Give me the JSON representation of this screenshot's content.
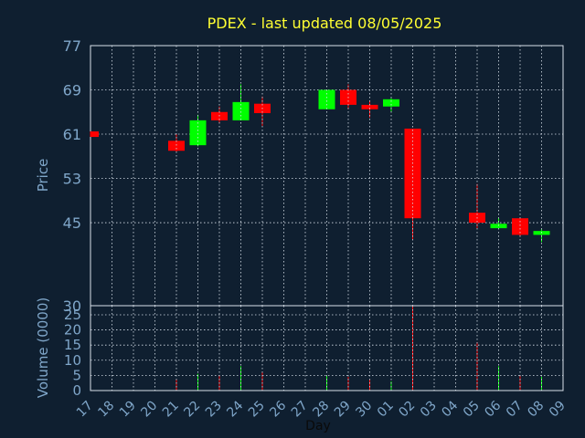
{
  "chart_data": {
    "type": "candlestick",
    "title": "PDEX - last updated 08/05/2025",
    "xlabel": "Day",
    "ylabel_price": "Price",
    "ylabel_volume": "Volume (0000)",
    "x_ticks": [
      "17",
      "18",
      "19",
      "20",
      "21",
      "22",
      "23",
      "24",
      "25",
      "26",
      "27",
      "28",
      "29",
      "30",
      "01",
      "02",
      "03",
      "04",
      "05",
      "06",
      "07",
      "08",
      "09"
    ],
    "price_ylim": [
      30,
      77
    ],
    "price_ticks": [
      77,
      69,
      61,
      53,
      45,
      30
    ],
    "volume_ylim": [
      0,
      28
    ],
    "volume_ticks": [
      0,
      5,
      10,
      15,
      20,
      25
    ],
    "grid": true,
    "colors": {
      "background": "#0f1f30",
      "plot_background": "#0f1f30",
      "axes": "#d8e0ea",
      "grid": "#d8e0ea",
      "tick_labels": "#7fa6c9",
      "title": "#ffff33",
      "up": "#00ff00",
      "down": "#ff0000"
    },
    "candles": [
      {
        "day": "17",
        "open": 61.5,
        "high": 61.5,
        "low": 60.5,
        "close": 60.5,
        "volume": 0
      },
      {
        "day": "21",
        "open": 59.8,
        "high": 61.0,
        "low": 57.8,
        "close": 58.0,
        "volume": 3.5
      },
      {
        "day": "22",
        "open": 59.0,
        "high": 64.5,
        "low": 58.8,
        "close": 63.5,
        "volume": 5.5
      },
      {
        "day": "23",
        "open": 65.0,
        "high": 66.0,
        "low": 63.0,
        "close": 63.5,
        "volume": 5.0
      },
      {
        "day": "24",
        "open": 63.5,
        "high": 70.0,
        "low": 63.5,
        "close": 66.8,
        "volume": 8.0
      },
      {
        "day": "25",
        "open": 66.5,
        "high": 67.8,
        "low": 62.5,
        "close": 64.8,
        "volume": 6.0
      },
      {
        "day": "28",
        "open": 65.5,
        "high": 69.0,
        "low": 65.5,
        "close": 69.0,
        "volume": 5.0
      },
      {
        "day": "29",
        "open": 69.0,
        "high": 70.0,
        "low": 65.5,
        "close": 66.3,
        "volume": 4.5
      },
      {
        "day": "30",
        "open": 66.3,
        "high": 67.0,
        "low": 64.0,
        "close": 65.5,
        "volume": 3.5
      },
      {
        "day": "01",
        "open": 66.0,
        "high": 67.5,
        "low": 65.0,
        "close": 67.3,
        "volume": 3.0
      },
      {
        "day": "02",
        "open": 62.0,
        "high": 62.0,
        "low": 42.0,
        "close": 45.8,
        "volume": 28.0
      },
      {
        "day": "05",
        "open": 46.8,
        "high": 52.0,
        "low": 44.0,
        "close": 45.0,
        "volume": 16.0
      },
      {
        "day": "06",
        "open": 44.0,
        "high": 45.8,
        "low": 44.0,
        "close": 44.8,
        "volume": 8.0
      },
      {
        "day": "07",
        "open": 45.8,
        "high": 45.8,
        "low": 42.5,
        "close": 42.8,
        "volume": 5.0
      },
      {
        "day": "08",
        "open": 42.8,
        "high": 43.8,
        "low": 41.5,
        "close": 43.5,
        "volume": 4.5
      }
    ]
  }
}
